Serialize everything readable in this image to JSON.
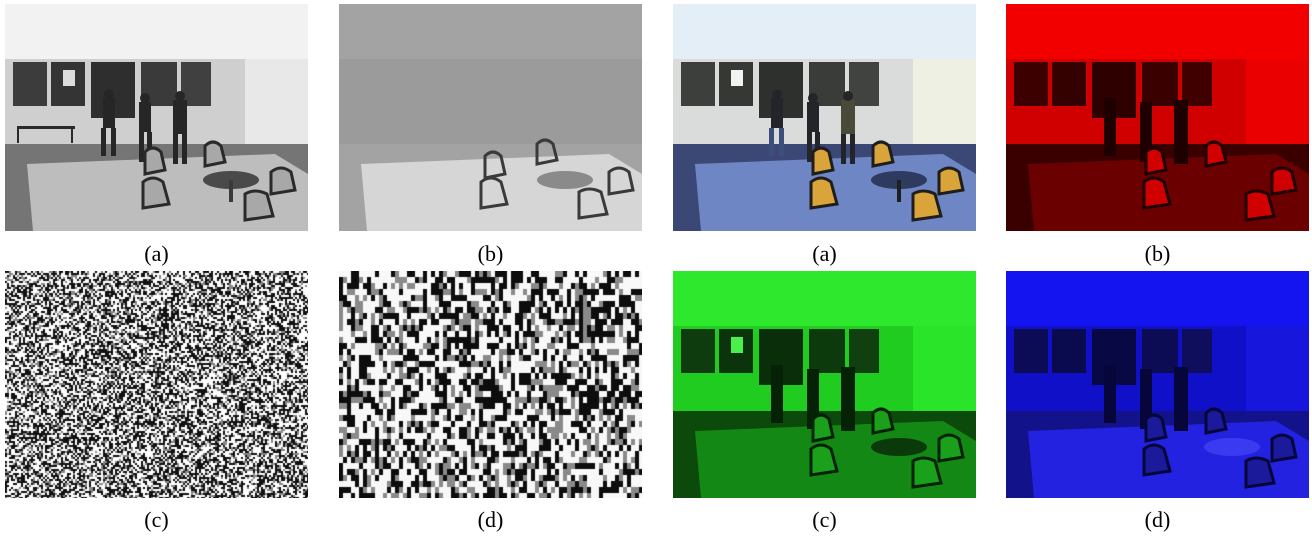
{
  "figure_left": {
    "panels": [
      {
        "caption": "(a)",
        "kind": "grayscale-scene"
      },
      {
        "caption": "(b)",
        "kind": "faded-gray-scene"
      },
      {
        "caption": "(c)",
        "kind": "fine-noise"
      },
      {
        "caption": "(d)",
        "kind": "block-noise"
      }
    ]
  },
  "figure_right": {
    "panels": [
      {
        "caption": "(a)",
        "kind": "color-scene"
      },
      {
        "caption": "(b)",
        "kind": "red-channel-scene"
      },
      {
        "caption": "(c)",
        "kind": "green-channel-scene"
      },
      {
        "caption": "(d)",
        "kind": "blue-channel-scene"
      }
    ]
  }
}
